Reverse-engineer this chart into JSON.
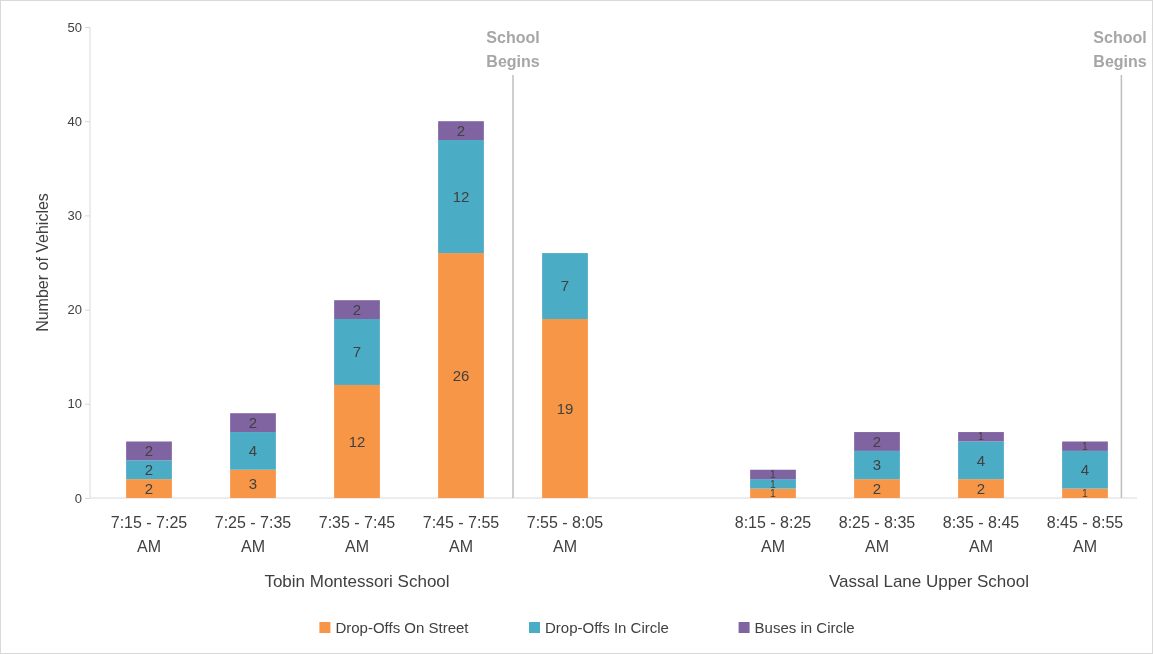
{
  "chart_data": {
    "type": "bar",
    "stacked": true,
    "ylabel": "Number of Vehicles",
    "categories": [
      "7:15 - 7:25 AM",
      "7:25 - 7:35 AM",
      "7:35 - 7:45 AM",
      "7:45 - 7:55 AM",
      "7:55 - 8:05 AM",
      null,
      "8:15 - 8:25 AM",
      "8:25 - 8:35 AM",
      "8:35 - 8:45 AM",
      "8:45 - 8:55 AM"
    ],
    "series": [
      {
        "name": "Drop-Offs On Street",
        "color": "#f79646",
        "values": [
          2,
          3,
          12,
          26,
          19,
          null,
          1,
          2,
          2,
          1
        ]
      },
      {
        "name": "Drop-Offs In Circle",
        "color": "#4bacc6",
        "values": [
          2,
          4,
          7,
          12,
          7,
          null,
          1,
          3,
          4,
          4
        ]
      },
      {
        "name": "Buses in Circle",
        "color": "#8064a2",
        "values": [
          2,
          2,
          2,
          2,
          null,
          null,
          1,
          2,
          1,
          1
        ]
      }
    ],
    "ylim": [
      0,
      50
    ],
    "yticks": [
      0,
      10,
      20,
      30,
      40,
      50
    ],
    "grid": false,
    "legend": "bottom",
    "data_labels": true,
    "annotations": [
      "School Begins",
      "School Begins",
      "Tobin Montessori School",
      "Vassal Lane Upper School"
    ]
  }
}
